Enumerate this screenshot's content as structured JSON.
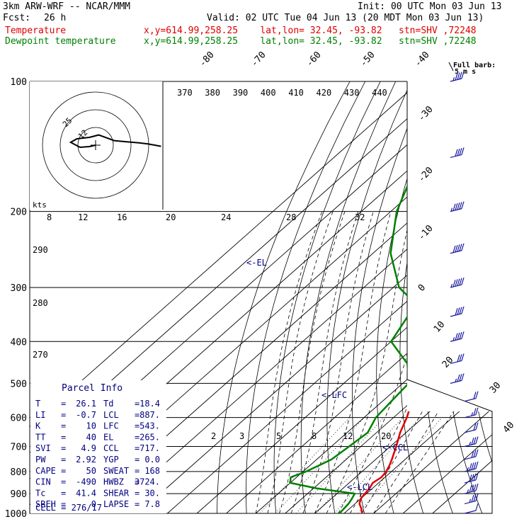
{
  "header": {
    "model": "3km ARW-WRF -- NCAR/MMM",
    "init": "Init: 00 UTC Mon 03 Jun 13",
    "fcst_label": "Fcst:",
    "fcst_value": "26 h",
    "valid": "Valid: 02 UTC Tue 04 Jun 13 (20 MDT Mon 03 Jun 13)",
    "temp_name": "Temperature",
    "dew_name": "Dewpoint temperature",
    "location": "x,y=614.99,258.25    lat,lon= 32.45, -93.82   stn=SHV ,72248",
    "barb_key_1": "Full barb:",
    "barb_key_2": "5 m s"
  },
  "colors": {
    "temperature": "#e00000",
    "dewpoint": "#008000",
    "hodograph": "#000000",
    "labels": "#000080"
  },
  "chart_data": {
    "type": "line",
    "title": "",
    "ylabel": "",
    "pressure_levels": [
      100,
      200,
      300,
      400,
      500,
      600,
      700,
      800,
      900,
      1000
    ],
    "temp_ticks": [
      -80,
      -70,
      -60,
      -50,
      -40,
      -30,
      -20,
      -10,
      0,
      10,
      20,
      30,
      40
    ],
    "theta_labels": [
      370,
      380,
      390,
      400,
      410,
      420,
      430,
      440
    ],
    "left_theta_labels": [
      290,
      280,
      270
    ],
    "hodo_ring_labels": [
      "25",
      "12"
    ],
    "hodo_kts_label": "kts",
    "hodo_speed_labels": [
      "8",
      "12",
      "16",
      "20",
      "24",
      "28",
      "32"
    ],
    "mixing_ratio_labels": [
      "2",
      "3",
      "5",
      "8",
      "12",
      "20"
    ],
    "annotations": [
      "<-EL",
      "<-LFC",
      "<-CCL",
      "<-LCL"
    ],
    "series": [
      {
        "name": "Temperature",
        "points": [
          [
            1000,
            26.1
          ],
          [
            975,
            24
          ],
          [
            950,
            21.5
          ],
          [
            925,
            20
          ],
          [
            900,
            19.5
          ],
          [
            875,
            19
          ],
          [
            850,
            18
          ],
          [
            825,
            18.8
          ],
          [
            800,
            18.2
          ],
          [
            775,
            17
          ],
          [
            750,
            15.5
          ],
          [
            700,
            12
          ],
          [
            650,
            8
          ],
          [
            600,
            4.5
          ],
          [
            550,
            0
          ],
          [
            500,
            -5
          ],
          [
            450,
            -10
          ],
          [
            400,
            -16
          ],
          [
            350,
            -22.5
          ],
          [
            300,
            -31
          ],
          [
            250,
            -40
          ],
          [
            200,
            -50
          ],
          [
            175,
            -55
          ],
          [
            150,
            -61
          ],
          [
            125,
            -66
          ],
          [
            100,
            -68
          ]
        ]
      },
      {
        "name": "Dewpoint temperature",
        "points": [
          [
            1000,
            18.4
          ],
          [
            950,
            17.8
          ],
          [
            925,
            17
          ],
          [
            900,
            16
          ],
          [
            875,
            1
          ],
          [
            850,
            -10
          ],
          [
            825,
            -12
          ],
          [
            800,
            -9
          ],
          [
            775,
            -7
          ],
          [
            750,
            -5
          ],
          [
            700,
            -4
          ],
          [
            650,
            -3
          ],
          [
            600,
            -6
          ],
          [
            550,
            -7
          ],
          [
            500,
            -8
          ],
          [
            450,
            -16
          ],
          [
            400,
            -30
          ],
          [
            350,
            -34
          ],
          [
            325,
            -37
          ],
          [
            300,
            -48
          ],
          [
            250,
            -64
          ],
          [
            200,
            -78
          ],
          [
            175,
            -84
          ],
          [
            150,
            -88
          ],
          [
            125,
            -90
          ],
          [
            100,
            -91
          ]
        ]
      }
    ],
    "hodograph": [
      [
        0,
        0
      ],
      [
        -2,
        2
      ],
      [
        -5,
        3
      ],
      [
        -8,
        -4
      ],
      [
        -6,
        -9
      ],
      [
        -2,
        -11
      ],
      [
        1,
        -9
      ],
      [
        6,
        -4
      ],
      [
        10,
        -3
      ],
      [
        14,
        -2
      ],
      [
        17,
        -1
      ],
      [
        19,
        0
      ],
      [
        21,
        1
      ]
    ],
    "barbs_kts": [
      [
        1000,
        10
      ],
      [
        950,
        25
      ],
      [
        900,
        35
      ],
      [
        850,
        40
      ],
      [
        800,
        35
      ],
      [
        750,
        30
      ],
      [
        700,
        25
      ],
      [
        650,
        20
      ],
      [
        600,
        15
      ],
      [
        550,
        20
      ],
      [
        500,
        25
      ],
      [
        450,
        30
      ],
      [
        400,
        35
      ],
      [
        350,
        40
      ],
      [
        300,
        45
      ],
      [
        250,
        50
      ],
      [
        200,
        45
      ],
      [
        150,
        40
      ],
      [
        100,
        35
      ]
    ]
  },
  "parcel_info": {
    "title": "Parcel Info",
    "rows": [
      [
        "T",
        "=",
        "26.1",
        "Td",
        "=",
        "18.4"
      ],
      [
        "LI",
        "=",
        "-0.7",
        "LCL",
        "=",
        "887."
      ],
      [
        "K",
        "=",
        "10",
        "LFC",
        "=",
        "543."
      ],
      [
        "TT",
        "=",
        "40",
        "EL",
        "=",
        "265."
      ],
      [
        "SVI",
        "=",
        "4.9",
        "CCL",
        "=",
        "717."
      ],
      [
        "PW",
        "=",
        "2.92",
        "YGP",
        "=",
        "0.0"
      ],
      [
        "CAPE",
        "=",
        "50",
        "SWEAT",
        "=",
        "168"
      ],
      [
        "CIN",
        "=",
        "-490",
        "HWBZ",
        "=",
        "3724."
      ],
      [
        "Tc",
        "=",
        "41.4",
        "SHEAR",
        "=",
        "30."
      ],
      [
        "SREH",
        "=",
        "0",
        "LAPSE",
        "=",
        "7.8"
      ]
    ],
    "cell": "CELL = 276/17"
  }
}
